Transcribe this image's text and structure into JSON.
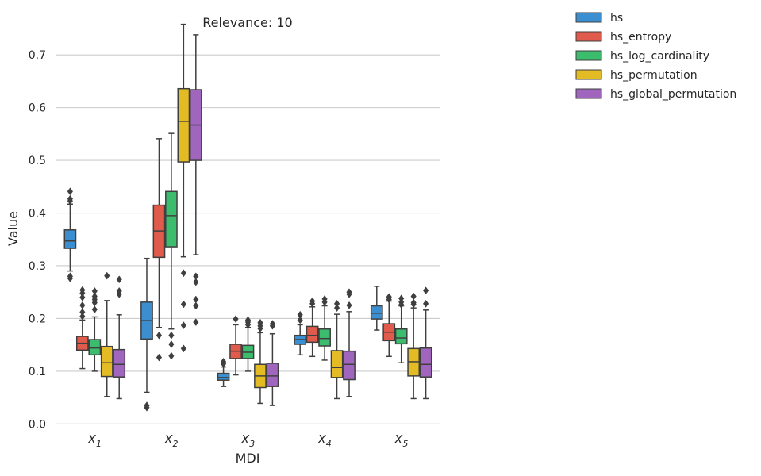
{
  "chart_data": {
    "type": "box",
    "title": "Relevance: 10",
    "xlabel": "MDI",
    "ylabel": "Value",
    "ylim": [
      -0.01,
      0.78
    ],
    "yticks": [
      0.0,
      0.1,
      0.2,
      0.3,
      0.4,
      0.5,
      0.6,
      0.7
    ],
    "ytick_labels": [
      "0.0",
      "0.1",
      "0.2",
      "0.3",
      "0.4",
      "0.5",
      "0.6",
      "0.7"
    ],
    "grid": "horizontal",
    "legend_position": "outside top-right",
    "categories": [
      {
        "base": "X",
        "sub": "1"
      },
      {
        "base": "X",
        "sub": "2"
      },
      {
        "base": "X",
        "sub": "3"
      },
      {
        "base": "X",
        "sub": "4"
      },
      {
        "base": "X",
        "sub": "5"
      }
    ],
    "series": [
      {
        "name": "hs",
        "color": "#3b8fd0",
        "boxes": [
          {
            "q1": 0.333,
            "median": 0.347,
            "q3": 0.368,
            "whisker_low": 0.29,
            "whisker_high": 0.417,
            "outliers": [
              0.441,
              0.427,
              0.423,
              0.28,
              0.276
            ]
          },
          {
            "q1": 0.161,
            "median": 0.196,
            "q3": 0.231,
            "whisker_low": 0.06,
            "whisker_high": 0.314,
            "outliers": [
              0.035,
              0.031
            ]
          },
          {
            "q1": 0.083,
            "median": 0.088,
            "q3": 0.096,
            "whisker_low": 0.071,
            "whisker_high": 0.108,
            "outliers": [
              0.118,
              0.114
            ]
          },
          {
            "q1": 0.151,
            "median": 0.16,
            "q3": 0.168,
            "whisker_low": 0.131,
            "whisker_high": 0.188,
            "outliers": [
              0.207,
              0.197
            ]
          },
          {
            "q1": 0.199,
            "median": 0.21,
            "q3": 0.224,
            "whisker_low": 0.178,
            "whisker_high": 0.261,
            "outliers": []
          }
        ]
      },
      {
        "name": "hs_entropy",
        "color": "#e05b4b",
        "boxes": [
          {
            "q1": 0.14,
            "median": 0.153,
            "q3": 0.166,
            "whisker_low": 0.105,
            "whisker_high": 0.197,
            "outliers": [
              0.254,
              0.248,
              0.24,
              0.225,
              0.212,
              0.204
            ]
          },
          {
            "q1": 0.316,
            "median": 0.366,
            "q3": 0.415,
            "whisker_low": 0.183,
            "whisker_high": 0.541,
            "outliers": [
              0.168,
              0.126
            ]
          },
          {
            "q1": 0.124,
            "median": 0.138,
            "q3": 0.151,
            "whisker_low": 0.093,
            "whisker_high": 0.188,
            "outliers": [
              0.199
            ]
          },
          {
            "q1": 0.155,
            "median": 0.168,
            "q3": 0.185,
            "whisker_low": 0.128,
            "whisker_high": 0.222,
            "outliers": [
              0.233,
              0.228
            ]
          },
          {
            "q1": 0.158,
            "median": 0.174,
            "q3": 0.19,
            "whisker_low": 0.128,
            "whisker_high": 0.233,
            "outliers": [
              0.241,
              0.236
            ]
          }
        ]
      },
      {
        "name": "hs_log_cardinality",
        "color": "#3cbd6e",
        "boxes": [
          {
            "q1": 0.131,
            "median": 0.144,
            "q3": 0.16,
            "whisker_low": 0.1,
            "whisker_high": 0.203,
            "outliers": [
              0.252,
              0.242,
              0.236,
              0.23,
              0.217
            ]
          },
          {
            "q1": 0.336,
            "median": 0.395,
            "q3": 0.441,
            "whisker_low": 0.18,
            "whisker_high": 0.551,
            "outliers": [
              0.168,
              0.151,
              0.129
            ]
          },
          {
            "q1": 0.124,
            "median": 0.136,
            "q3": 0.149,
            "whisker_low": 0.1,
            "whisker_high": 0.183,
            "outliers": [
              0.197,
              0.193,
              0.188
            ]
          },
          {
            "q1": 0.148,
            "median": 0.162,
            "q3": 0.18,
            "whisker_low": 0.121,
            "whisker_high": 0.224,
            "outliers": [
              0.237,
              0.231
            ]
          },
          {
            "q1": 0.152,
            "median": 0.163,
            "q3": 0.18,
            "whisker_low": 0.116,
            "whisker_high": 0.224,
            "outliers": [
              0.238,
              0.231,
              0.226
            ]
          }
        ]
      },
      {
        "name": "hs_permutation",
        "color": "#e3bb24",
        "boxes": [
          {
            "q1": 0.09,
            "median": 0.116,
            "q3": 0.147,
            "whisker_low": 0.052,
            "whisker_high": 0.234,
            "outliers": [
              0.281
            ]
          },
          {
            "q1": 0.497,
            "median": 0.574,
            "q3": 0.636,
            "whisker_low": 0.317,
            "whisker_high": 0.758,
            "outliers": [
              0.286,
              0.227,
              0.187,
              0.143
            ]
          },
          {
            "q1": 0.069,
            "median": 0.091,
            "q3": 0.113,
            "whisker_low": 0.039,
            "whisker_high": 0.173,
            "outliers": [
              0.192,
              0.186,
              0.181
            ]
          },
          {
            "q1": 0.088,
            "median": 0.107,
            "q3": 0.139,
            "whisker_low": 0.048,
            "whisker_high": 0.208,
            "outliers": [
              0.228,
              0.22
            ]
          },
          {
            "q1": 0.091,
            "median": 0.118,
            "q3": 0.143,
            "whisker_low": 0.048,
            "whisker_high": 0.22,
            "outliers": [
              0.242,
              0.23,
              0.227
            ]
          }
        ]
      },
      {
        "name": "hs_global_permutation",
        "color": "#a066bd",
        "boxes": [
          {
            "q1": 0.089,
            "median": 0.113,
            "q3": 0.141,
            "whisker_low": 0.048,
            "whisker_high": 0.207,
            "outliers": [
              0.274,
              0.252,
              0.246
            ]
          },
          {
            "q1": 0.5,
            "median": 0.567,
            "q3": 0.634,
            "whisker_low": 0.321,
            "whisker_high": 0.738,
            "outliers": [
              0.28,
              0.269,
              0.236,
              0.224,
              0.193
            ]
          },
          {
            "q1": 0.071,
            "median": 0.091,
            "q3": 0.115,
            "whisker_low": 0.035,
            "whisker_high": 0.171,
            "outliers": [
              0.19,
              0.186
            ]
          },
          {
            "q1": 0.084,
            "median": 0.113,
            "q3": 0.138,
            "whisker_low": 0.052,
            "whisker_high": 0.213,
            "outliers": [
              0.25,
              0.246,
              0.225
            ]
          },
          {
            "q1": 0.089,
            "median": 0.113,
            "q3": 0.144,
            "whisker_low": 0.048,
            "whisker_high": 0.216,
            "outliers": [
              0.253,
              0.228
            ]
          }
        ]
      }
    ]
  }
}
